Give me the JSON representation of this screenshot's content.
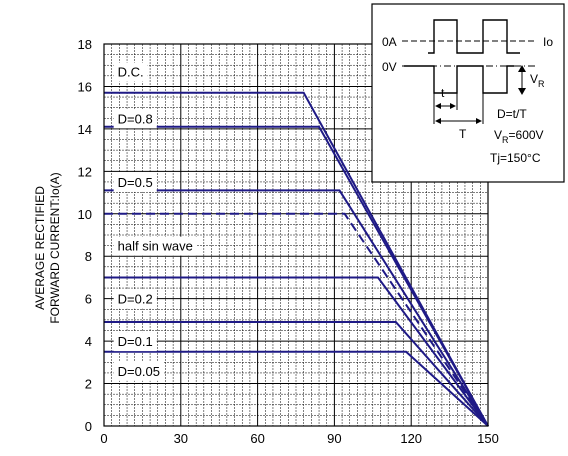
{
  "chart_data": {
    "type": "line",
    "title": "",
    "xlabel": "",
    "ylabel_lines": [
      "AVERAGE RECTIFIED",
      "FORWARD CURRENT:Io(A)"
    ],
    "xlim": [
      0,
      150
    ],
    "ylim": [
      0,
      18
    ],
    "x_ticks": [
      "0",
      "30",
      "60",
      "90",
      "120",
      "150"
    ],
    "y_ticks": [
      "0",
      "2",
      "4",
      "6",
      "8",
      "10",
      "12",
      "14",
      "16",
      "18"
    ],
    "grid": true,
    "series": [
      {
        "name": "D.C.",
        "dashed": false,
        "x": [
          0,
          78,
          150
        ],
        "y": [
          15.7,
          15.7,
          0
        ],
        "label_at": [
          3,
          16.7
        ]
      },
      {
        "name": "D=0.8",
        "dashed": false,
        "x": [
          0,
          84,
          150
        ],
        "y": [
          14.1,
          14.1,
          0
        ],
        "label_at": [
          3,
          14.5
        ]
      },
      {
        "name": "D=0.5",
        "dashed": false,
        "x": [
          0,
          92,
          150
        ],
        "y": [
          11.1,
          11.1,
          0
        ],
        "label_at": [
          3,
          11.5
        ]
      },
      {
        "name": "half sin wave",
        "dashed": true,
        "x": [
          0,
          94,
          150
        ],
        "y": [
          10.0,
          10.0,
          0
        ],
        "label_at": [
          3,
          8.5
        ]
      },
      {
        "name": "D=0.2",
        "dashed": false,
        "x": [
          0,
          107,
          150
        ],
        "y": [
          7.0,
          7.0,
          0
        ],
        "label_at": [
          3,
          6.0
        ]
      },
      {
        "name": "D=0.1",
        "dashed": false,
        "x": [
          0,
          114,
          150
        ],
        "y": [
          4.9,
          4.9,
          0
        ],
        "label_at": [
          3,
          4.0
        ]
      },
      {
        "name": "D=0.05",
        "dashed": false,
        "x": [
          0,
          118,
          150
        ],
        "y": [
          3.5,
          3.5,
          0
        ],
        "label_at": [
          3,
          2.6
        ]
      }
    ],
    "inset": {
      "level_0A": "0A",
      "level_0V": "0V",
      "io": "Io",
      "vr": "V",
      "vr_sub": "R",
      "t": "t",
      "T": "T",
      "d_formula": "D=t/T",
      "vr_value_prefix": "V",
      "vr_value_sub": "R",
      "vr_value_suffix": "=600V",
      "tj": "Tj=150°C"
    }
  }
}
